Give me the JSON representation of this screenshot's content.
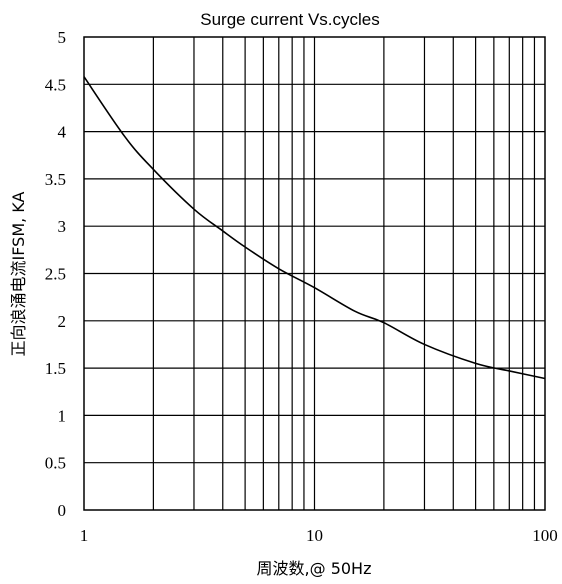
{
  "chart_data": {
    "type": "line",
    "title": "Surge current Vs.cycles",
    "xlabel": "周波数,@ 50Hz",
    "ylabel": "正向浪涌电流IFSM, KA",
    "x_scale": "log",
    "xlim": [
      1,
      100
    ],
    "ylim": [
      0,
      5
    ],
    "x_tick_labels": [
      "1",
      "10",
      "100"
    ],
    "y_tick_labels": [
      "0",
      "0.5",
      "1",
      "1.5",
      "2",
      "2.5",
      "3",
      "3.5",
      "4",
      "4.5",
      "5"
    ],
    "grid": true,
    "series": [
      {
        "x": [
          1,
          1.5,
          2,
          3,
          4,
          5,
          7,
          10,
          15,
          20,
          30,
          50,
          70,
          100
        ],
        "y": [
          4.58,
          3.95,
          3.6,
          3.18,
          2.95,
          2.78,
          2.55,
          2.35,
          2.1,
          1.98,
          1.75,
          1.55,
          1.47,
          1.39
        ]
      }
    ]
  }
}
